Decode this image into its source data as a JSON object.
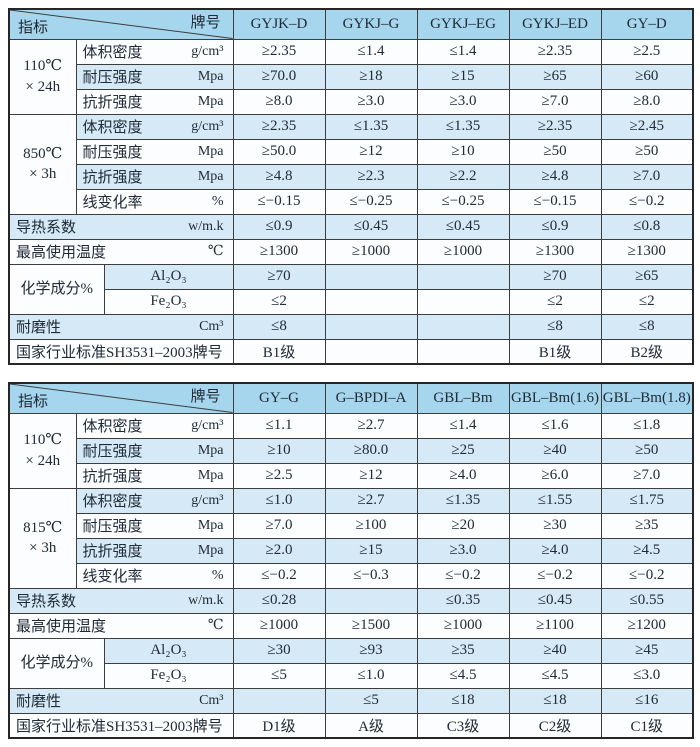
{
  "colors": {
    "header_bg": "#a6d5ee",
    "stripe_bg": "#d5eaf6",
    "row_bg": "#fcfdfe",
    "border": "#3d3d3d",
    "outer_border": "#262626",
    "text": "#202b36",
    "diagonal_line": "#3d3d3d"
  },
  "tables": [
    {
      "corner": {
        "indicator": "指标",
        "brand": "牌号"
      },
      "columns": [
        "GYJK–D",
        "GYKJ–G",
        "GYKJ–EG",
        "GYKJ–ED",
        "GY–D"
      ],
      "rows": [
        {
          "group": {
            "lines": [
              "110℃",
              "× 24h"
            ],
            "span": 3,
            "cols": 1
          },
          "label": "体积密度",
          "unit": "g/cm³",
          "values": [
            "≥2.35",
            "≤1.4",
            "≤1.4",
            "≥2.35",
            "≥2.5"
          ]
        },
        {
          "label": "耐压强度",
          "unit": "Mpa",
          "values": [
            "≥70.0",
            "≥18",
            "≥15",
            "≥65",
            "≥60"
          ]
        },
        {
          "label": "抗折强度",
          "unit": "Mpa",
          "values": [
            "≥8.0",
            "≥3.0",
            "≥3.0",
            "≥7.0",
            "≥8.0"
          ]
        },
        {
          "group": {
            "lines": [
              "850℃",
              "× 3h"
            ],
            "span": 4,
            "cols": 1
          },
          "label": "体积密度",
          "unit": "g/cm³",
          "values": [
            "≥2.35",
            "≤1.35",
            "≤1.35",
            "≥2.35",
            "≥2.45"
          ]
        },
        {
          "label": "耐压强度",
          "unit": "Mpa",
          "values": [
            "≥50.0",
            "≥12",
            "≥10",
            "≥50",
            "≥50"
          ]
        },
        {
          "label": "抗折强度",
          "unit": "Mpa",
          "values": [
            "≥4.8",
            "≥2.3",
            "≥2.2",
            "≥4.8",
            "≥7.0"
          ]
        },
        {
          "label": "线变化率",
          "unit": "%",
          "values": [
            "≤−0.15",
            "≤−0.25",
            "≤−0.25",
            "≤−0.15",
            "≤−0.2"
          ]
        },
        {
          "label": "导热系数",
          "unit": "w/m.k",
          "values": [
            "≤0.9",
            "≤0.45",
            "≤0.45",
            "≤0.9",
            "≤0.8"
          ]
        },
        {
          "label": "最高使用温度",
          "unit": "℃",
          "values": [
            "≥1300",
            "≥1000",
            "≥1000",
            "≥1300",
            "≥1300"
          ]
        },
        {
          "group": {
            "lines": [
              "化学成分%"
            ],
            "span": 2,
            "cols": 2
          },
          "label": "Al₂O₃",
          "unit": "",
          "values": [
            "≥70",
            "",
            "",
            "≥70",
            "≥65"
          ]
        },
        {
          "label": "Fe₂O₃",
          "unit": "",
          "values": [
            "≤2",
            "",
            "",
            "≤2",
            "≤2"
          ]
        },
        {
          "label": "耐磨性",
          "unit": "Cm³",
          "values": [
            "≤8",
            "",
            "",
            "≤8",
            "≤8"
          ]
        },
        {
          "label": "国家行业标准SH3531–2003牌号",
          "unit": "",
          "values": [
            "B1级",
            "",
            "",
            "B1级",
            "B2级"
          ]
        }
      ]
    },
    {
      "corner": {
        "indicator": "指标",
        "brand": "牌号"
      },
      "columns": [
        "GY–G",
        "G–BPDI–A",
        "GBL–Bm",
        "GBL–Bm(1.6)",
        "GBL–Bm(1.8)"
      ],
      "rows": [
        {
          "group": {
            "lines": [
              "110℃",
              "× 24h"
            ],
            "span": 3,
            "cols": 1
          },
          "label": "体积密度",
          "unit": "g/cm³",
          "values": [
            "≤1.1",
            "≥2.7",
            "≤1.4",
            "≤1.6",
            "≤1.8"
          ]
        },
        {
          "label": "耐压强度",
          "unit": "Mpa",
          "values": [
            "≥10",
            "≥80.0",
            "≥25",
            "≥40",
            "≥50"
          ]
        },
        {
          "label": "抗折强度",
          "unit": "Mpa",
          "values": [
            "≥2.5",
            "≥12",
            "≥4.0",
            "≥6.0",
            "≥7.0"
          ]
        },
        {
          "group": {
            "lines": [
              "815℃",
              "× 3h"
            ],
            "span": 4,
            "cols": 1
          },
          "label": "体积密度",
          "unit": "g/cm³",
          "values": [
            "≤1.0",
            "≥2.7",
            "≤1.35",
            "≤1.55",
            "≤1.75"
          ]
        },
        {
          "label": "耐压强度",
          "unit": "Mpa",
          "values": [
            "≥7.0",
            "≥100",
            "≥20",
            "≥30",
            "≥35"
          ]
        },
        {
          "label": "抗折强度",
          "unit": "Mpa",
          "values": [
            "≥2.0",
            "≥15",
            "≥3.0",
            "≥4.0",
            "≥4.5"
          ]
        },
        {
          "label": "线变化率",
          "unit": "%",
          "values": [
            "≤−0.2",
            "≤−0.3",
            "≤−0.2",
            "≤−0.2",
            "≤−0.2"
          ]
        },
        {
          "label": "导热系数",
          "unit": "w/m.k",
          "values": [
            "≤0.28",
            "",
            "≤0.35",
            "≤0.45",
            "≤0.55"
          ]
        },
        {
          "label": "最高使用温度",
          "unit": "℃",
          "values": [
            "≥1000",
            "≥1500",
            "≥1000",
            "≥1100",
            "≥1200"
          ]
        },
        {
          "group": {
            "lines": [
              "化学成分%"
            ],
            "span": 2,
            "cols": 2
          },
          "label": "Al₂O₃",
          "unit": "",
          "values": [
            "≥30",
            "≥93",
            "≥35",
            "≥40",
            "≥45"
          ]
        },
        {
          "label": "Fe₂O₃",
          "unit": "",
          "values": [
            "≤5",
            "≤1.0",
            "≤4.5",
            "≤4.5",
            "≤3.0"
          ]
        },
        {
          "label": "耐磨性",
          "unit": "Cm³",
          "values": [
            "",
            "≤5",
            "≤18",
            "≤18",
            "≤16"
          ]
        },
        {
          "label": "国家行业标准SH3531–2003牌号",
          "unit": "",
          "values": [
            "D1级",
            "A级",
            "C3级",
            "C2级",
            "C1级"
          ]
        }
      ]
    }
  ]
}
